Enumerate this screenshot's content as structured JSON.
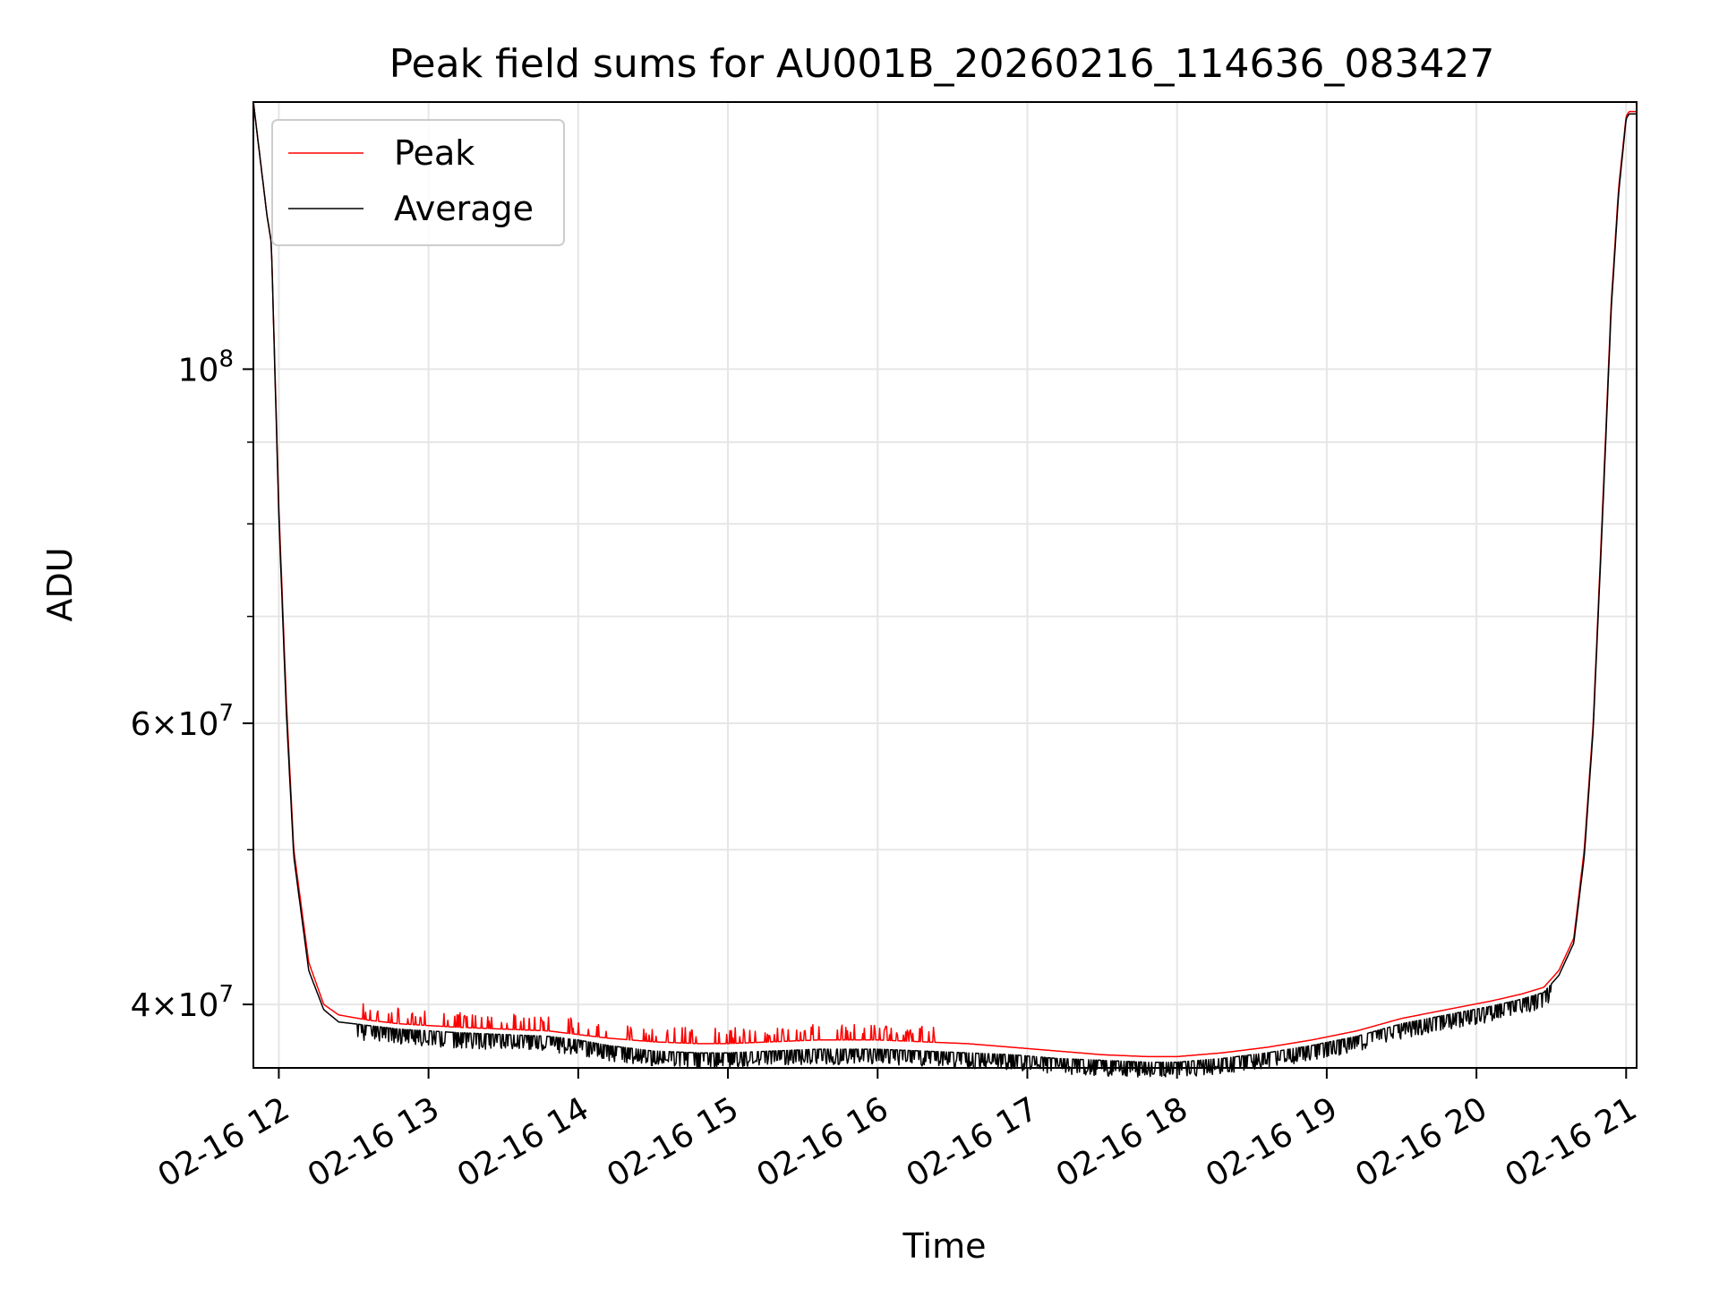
{
  "chart_data": {
    "type": "line",
    "title": "Peak field sums for AU001B_20260216_114636_083427",
    "xlabel": "Time",
    "ylabel": "ADU",
    "yscale": "log",
    "xlim": [
      11.83,
      21.07
    ],
    "ylim": [
      36500000,
      147000000
    ],
    "grid": true,
    "legend_position": "top-left",
    "x_tick_values": [
      12,
      13,
      14,
      15,
      16,
      17,
      18,
      19,
      20,
      21
    ],
    "x_tick_labels": [
      "02-16 12",
      "02-16 13",
      "02-16 14",
      "02-16 15",
      "02-16 16",
      "02-16 17",
      "02-16 18",
      "02-16 19",
      "02-16 20",
      "02-16 21"
    ],
    "y_major_ticks": [
      {
        "value": 40000000,
        "mantissa": "4",
        "base": "10",
        "exp": "7"
      },
      {
        "value": 60000000,
        "mantissa": "6",
        "base": "10",
        "exp": "7"
      },
      {
        "value": 100000000,
        "mantissa": "",
        "base": "10",
        "exp": "8"
      }
    ],
    "y_minor_ticks": [
      50000000,
      70000000,
      80000000,
      90000000
    ],
    "series": [
      {
        "name": "Peak",
        "color": "#ff0000",
        "x": [
          11.83,
          11.92,
          11.95,
          12.0,
          12.05,
          12.1,
          12.2,
          12.3,
          12.4,
          12.6,
          12.8,
          13.0,
          13.2,
          13.5,
          13.8,
          14.0,
          14.2,
          14.5,
          14.8,
          15.0,
          15.3,
          15.6,
          15.8,
          16.0,
          16.3,
          16.6,
          16.9,
          17.2,
          17.5,
          17.8,
          18.0,
          18.3,
          18.6,
          18.9,
          19.2,
          19.5,
          19.8,
          20.1,
          20.3,
          20.45,
          20.55,
          20.65,
          20.72,
          20.78,
          20.85,
          20.9,
          20.95,
          21.0,
          21.02,
          21.07
        ],
        "y": [
          147000000,
          125000000,
          120000000,
          82000000,
          62000000,
          50000000,
          42500000,
          40000000,
          39400000,
          39100000,
          38900000,
          38800000,
          38700000,
          38600000,
          38500000,
          38300000,
          38100000,
          37900000,
          37800000,
          37800000,
          37900000,
          38000000,
          38000000,
          38000000,
          37900000,
          37800000,
          37600000,
          37400000,
          37200000,
          37100000,
          37100000,
          37300000,
          37600000,
          38000000,
          38500000,
          39200000,
          39700000,
          40200000,
          40600000,
          41000000,
          42000000,
          44000000,
          50000000,
          60000000,
          85000000,
          110000000,
          130000000,
          144000000,
          145000000,
          145000000
        ]
      },
      {
        "name": "Average",
        "color": "#000000",
        "x": [
          11.83,
          11.92,
          11.95,
          12.0,
          12.05,
          12.1,
          12.2,
          12.3,
          12.4,
          12.6,
          12.8,
          13.0,
          13.2,
          13.5,
          13.8,
          14.0,
          14.2,
          14.5,
          14.8,
          15.0,
          15.3,
          15.6,
          15.8,
          16.0,
          16.3,
          16.6,
          16.9,
          17.2,
          17.5,
          17.8,
          18.0,
          18.3,
          18.6,
          18.9,
          19.2,
          19.5,
          19.8,
          20.1,
          20.3,
          20.45,
          20.55,
          20.65,
          20.72,
          20.78,
          20.85,
          20.9,
          20.95,
          21.0,
          21.02,
          21.07
        ],
        "y": [
          147000000,
          125000000,
          120000000,
          81000000,
          61000000,
          49500000,
          42000000,
          39700000,
          39000000,
          38800000,
          38600000,
          38500000,
          38400000,
          38300000,
          38200000,
          38000000,
          37700000,
          37400000,
          37300000,
          37300000,
          37400000,
          37500000,
          37500000,
          37500000,
          37400000,
          37300000,
          37200000,
          37000000,
          36900000,
          36800000,
          36800000,
          37000000,
          37300000,
          37700000,
          38200000,
          38900000,
          39400000,
          39900000,
          40300000,
          40700000,
          41700000,
          43700000,
          49500000,
          59500000,
          84000000,
          109000000,
          129000000,
          143500000,
          144500000,
          144500000
        ]
      }
    ]
  }
}
